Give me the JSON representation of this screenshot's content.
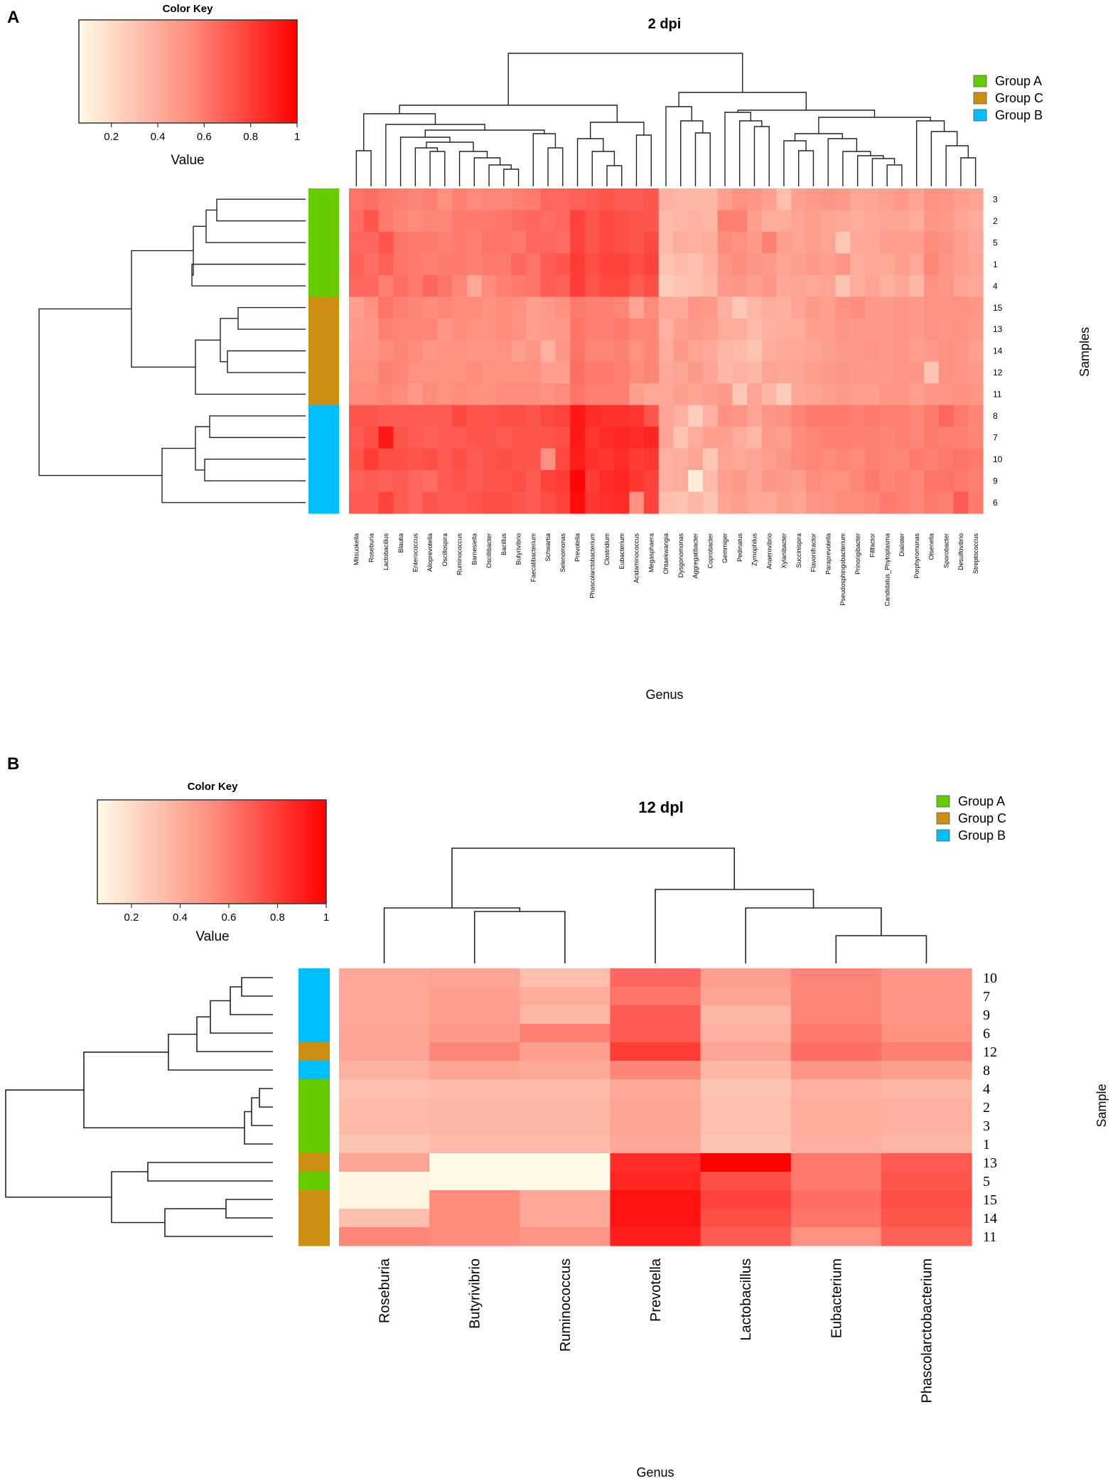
{
  "panel_labels": {
    "a": "A",
    "b": "B"
  },
  "colors": {
    "group_a": "#66cc00",
    "group_c": "#cc8f12",
    "group_b": "#00bfff",
    "low": "#fffbe6",
    "mid": "#fe8f80",
    "high": "#ff0000"
  },
  "legend": {
    "items": [
      {
        "label": "Group A",
        "group": "A"
      },
      {
        "label": "Group C",
        "group": "C"
      },
      {
        "label": "Group B",
        "group": "B"
      }
    ]
  },
  "chart_data": [
    {
      "type": "heatmap",
      "title": "2 dpi",
      "xlabel": "Genus",
      "ylabel": "Samples",
      "color_key": {
        "title": "Color Key",
        "label": "Value",
        "ticks": [
          "0.2",
          "0.4",
          "0.6",
          "0.8",
          "1"
        ],
        "range": [
          0.06,
          1
        ]
      },
      "columns": [
        "Mitsuokella",
        "Roseburia",
        "Lactobacillus",
        "Blautia",
        "Enterococcus",
        "Alloprevotella",
        "Oscillospira",
        "Ruminococcus",
        "Barnesiella",
        "Oscillibacter",
        "Bacillus",
        "Butyrivibrio",
        "Faecalibacterium",
        "Schwartia",
        "Selenomonas",
        "Prevotella",
        "Phascolarctobacterium",
        "Clostridium",
        "Eubacterium",
        "Acidaminococcus",
        "Megasphaera",
        "Ohtaekwangia",
        "Dysgonomonas",
        "Aggregatibacter",
        "Coprobacter",
        "Gemmiger",
        "Pedinatus",
        "Zymophilus",
        "Anaerovibrio",
        "Xylanibacter",
        "Succinispira",
        "Flavonifractor",
        "Paraprevotella",
        "Pseudosphingobacterium",
        "Prinorigibacter",
        "Fillfactor",
        "Candidatus_Phytoplasma",
        "Dialister",
        "Porphyromonas",
        "Olsenella",
        "Sporobacter",
        "Desulfovibrio",
        "Streptococcus"
      ],
      "rows": [
        {
          "label": "3",
          "group": "A"
        },
        {
          "label": "2",
          "group": "A"
        },
        {
          "label": "5",
          "group": "A"
        },
        {
          "label": "1",
          "group": "A"
        },
        {
          "label": "4",
          "group": "A"
        },
        {
          "label": "15",
          "group": "C"
        },
        {
          "label": "13",
          "group": "C"
        },
        {
          "label": "14",
          "group": "C"
        },
        {
          "label": "12",
          "group": "C"
        },
        {
          "label": "11",
          "group": "C"
        },
        {
          "label": "8",
          "group": "B"
        },
        {
          "label": "7",
          "group": "B"
        },
        {
          "label": "10",
          "group": "B"
        },
        {
          "label": "9",
          "group": "B"
        },
        {
          "label": "6",
          "group": "B"
        }
      ],
      "values": [
        [
          0.62,
          0.64,
          0.6,
          0.58,
          0.56,
          0.58,
          0.52,
          0.58,
          0.54,
          0.56,
          0.56,
          0.58,
          0.6,
          0.66,
          0.66,
          0.68,
          0.7,
          0.72,
          0.7,
          0.7,
          0.72,
          0.38,
          0.36,
          0.36,
          0.36,
          0.46,
          0.52,
          0.5,
          0.46,
          0.32,
          0.46,
          0.48,
          0.5,
          0.48,
          0.42,
          0.44,
          0.46,
          0.48,
          0.44,
          0.52,
          0.5,
          0.46,
          0.44
        ],
        [
          0.64,
          0.72,
          0.6,
          0.56,
          0.54,
          0.56,
          0.56,
          0.6,
          0.6,
          0.6,
          0.62,
          0.64,
          0.66,
          0.64,
          0.66,
          0.78,
          0.72,
          0.76,
          0.74,
          0.72,
          0.72,
          0.34,
          0.36,
          0.38,
          0.36,
          0.58,
          0.58,
          0.46,
          0.4,
          0.4,
          0.44,
          0.46,
          0.44,
          0.42,
          0.4,
          0.42,
          0.44,
          0.44,
          0.4,
          0.5,
          0.48,
          0.44,
          0.4
        ],
        [
          0.66,
          0.66,
          0.72,
          0.62,
          0.6,
          0.6,
          0.58,
          0.6,
          0.58,
          0.62,
          0.62,
          0.6,
          0.66,
          0.66,
          0.64,
          0.78,
          0.72,
          0.76,
          0.74,
          0.72,
          0.76,
          0.34,
          0.4,
          0.38,
          0.4,
          0.54,
          0.52,
          0.48,
          0.58,
          0.46,
          0.44,
          0.46,
          0.44,
          0.28,
          0.42,
          0.42,
          0.46,
          0.46,
          0.46,
          0.54,
          0.52,
          0.46,
          0.42
        ],
        [
          0.68,
          0.64,
          0.68,
          0.62,
          0.6,
          0.58,
          0.6,
          0.6,
          0.58,
          0.6,
          0.6,
          0.66,
          0.62,
          0.7,
          0.72,
          0.8,
          0.74,
          0.78,
          0.78,
          0.74,
          0.78,
          0.3,
          0.34,
          0.32,
          0.38,
          0.5,
          0.54,
          0.5,
          0.48,
          0.44,
          0.46,
          0.48,
          0.46,
          0.5,
          0.4,
          0.42,
          0.42,
          0.46,
          0.42,
          0.56,
          0.5,
          0.46,
          0.44
        ],
        [
          0.66,
          0.66,
          0.58,
          0.64,
          0.6,
          0.66,
          0.62,
          0.56,
          0.42,
          0.54,
          0.58,
          0.6,
          0.62,
          0.7,
          0.68,
          0.8,
          0.72,
          0.76,
          0.76,
          0.7,
          0.74,
          0.26,
          0.3,
          0.32,
          0.36,
          0.48,
          0.5,
          0.46,
          0.5,
          0.42,
          0.44,
          0.42,
          0.44,
          0.3,
          0.4,
          0.44,
          0.38,
          0.42,
          0.36,
          0.52,
          0.5,
          0.44,
          0.42
        ],
        [
          0.46,
          0.52,
          0.62,
          0.58,
          0.56,
          0.54,
          0.56,
          0.54,
          0.54,
          0.52,
          0.54,
          0.52,
          0.46,
          0.48,
          0.52,
          0.6,
          0.58,
          0.58,
          0.56,
          0.44,
          0.54,
          0.42,
          0.42,
          0.5,
          0.48,
          0.38,
          0.28,
          0.36,
          0.4,
          0.38,
          0.44,
          0.48,
          0.46,
          0.52,
          0.54,
          0.48,
          0.48,
          0.5,
          0.48,
          0.52,
          0.52,
          0.52,
          0.5
        ],
        [
          0.48,
          0.5,
          0.58,
          0.56,
          0.56,
          0.56,
          0.5,
          0.54,
          0.52,
          0.52,
          0.54,
          0.52,
          0.46,
          0.48,
          0.48,
          0.62,
          0.58,
          0.58,
          0.6,
          0.56,
          0.56,
          0.38,
          0.46,
          0.48,
          0.46,
          0.4,
          0.4,
          0.34,
          0.38,
          0.4,
          0.4,
          0.46,
          0.46,
          0.5,
          0.48,
          0.48,
          0.48,
          0.5,
          0.48,
          0.52,
          0.5,
          0.52,
          0.48
        ],
        [
          0.5,
          0.5,
          0.54,
          0.56,
          0.54,
          0.5,
          0.52,
          0.52,
          0.5,
          0.5,
          0.52,
          0.46,
          0.5,
          0.38,
          0.5,
          0.62,
          0.56,
          0.56,
          0.58,
          0.52,
          0.56,
          0.4,
          0.48,
          0.44,
          0.42,
          0.36,
          0.34,
          0.3,
          0.4,
          0.42,
          0.42,
          0.44,
          0.46,
          0.48,
          0.48,
          0.5,
          0.48,
          0.5,
          0.46,
          0.48,
          0.52,
          0.5,
          0.46
        ],
        [
          0.52,
          0.52,
          0.58,
          0.56,
          0.52,
          0.52,
          0.52,
          0.52,
          0.54,
          0.52,
          0.52,
          0.52,
          0.52,
          0.46,
          0.46,
          0.64,
          0.6,
          0.6,
          0.58,
          0.54,
          0.56,
          0.42,
          0.44,
          0.48,
          0.44,
          0.36,
          0.38,
          0.36,
          0.44,
          0.42,
          0.44,
          0.46,
          0.48,
          0.5,
          0.48,
          0.48,
          0.48,
          0.5,
          0.5,
          0.3,
          0.52,
          0.5,
          0.48
        ],
        [
          0.54,
          0.54,
          0.56,
          0.54,
          0.48,
          0.54,
          0.52,
          0.54,
          0.52,
          0.52,
          0.54,
          0.54,
          0.54,
          0.52,
          0.54,
          0.62,
          0.58,
          0.58,
          0.58,
          0.46,
          0.42,
          0.42,
          0.46,
          0.44,
          0.46,
          0.48,
          0.28,
          0.44,
          0.36,
          0.26,
          0.42,
          0.44,
          0.46,
          0.48,
          0.46,
          0.46,
          0.5,
          0.5,
          0.46,
          0.5,
          0.5,
          0.52,
          0.5
        ],
        [
          0.72,
          0.72,
          0.7,
          0.7,
          0.7,
          0.7,
          0.7,
          0.76,
          0.72,
          0.72,
          0.74,
          0.74,
          0.72,
          0.76,
          0.78,
          0.92,
          0.86,
          0.84,
          0.84,
          0.82,
          0.72,
          0.44,
          0.38,
          0.26,
          0.38,
          0.52,
          0.5,
          0.44,
          0.5,
          0.52,
          0.56,
          0.6,
          0.6,
          0.6,
          0.58,
          0.6,
          0.58,
          0.58,
          0.56,
          0.6,
          0.66,
          0.6,
          0.56
        ],
        [
          0.7,
          0.74,
          0.92,
          0.72,
          0.7,
          0.68,
          0.7,
          0.7,
          0.72,
          0.72,
          0.7,
          0.72,
          0.72,
          0.72,
          0.74,
          0.92,
          0.82,
          0.86,
          0.88,
          0.86,
          0.88,
          0.44,
          0.3,
          0.4,
          0.46,
          0.46,
          0.4,
          0.36,
          0.48,
          0.46,
          0.54,
          0.56,
          0.58,
          0.58,
          0.58,
          0.58,
          0.56,
          0.58,
          0.56,
          0.6,
          0.58,
          0.58,
          0.56
        ],
        [
          0.72,
          0.8,
          0.74,
          0.74,
          0.72,
          0.74,
          0.7,
          0.74,
          0.7,
          0.72,
          0.74,
          0.72,
          0.72,
          0.52,
          0.76,
          0.9,
          0.84,
          0.82,
          0.86,
          0.8,
          0.82,
          0.38,
          0.4,
          0.44,
          0.28,
          0.44,
          0.42,
          0.44,
          0.46,
          0.5,
          0.54,
          0.56,
          0.54,
          0.56,
          0.54,
          0.58,
          0.56,
          0.56,
          0.6,
          0.58,
          0.6,
          0.62,
          0.6
        ],
        [
          0.68,
          0.7,
          0.68,
          0.7,
          0.66,
          0.64,
          0.7,
          0.72,
          0.7,
          0.72,
          0.72,
          0.74,
          0.7,
          0.78,
          0.8,
          0.98,
          0.8,
          0.86,
          0.88,
          0.82,
          0.78,
          0.38,
          0.4,
          0.12,
          0.34,
          0.46,
          0.48,
          0.44,
          0.5,
          0.48,
          0.46,
          0.54,
          0.52,
          0.52,
          0.56,
          0.6,
          0.56,
          0.58,
          0.56,
          0.62,
          0.62,
          0.6,
          0.58
        ],
        [
          0.7,
          0.7,
          0.78,
          0.7,
          0.66,
          0.72,
          0.7,
          0.7,
          0.72,
          0.74,
          0.74,
          0.72,
          0.7,
          0.74,
          0.78,
          0.96,
          0.82,
          0.84,
          0.86,
          0.52,
          0.78,
          0.32,
          0.3,
          0.36,
          0.3,
          0.44,
          0.46,
          0.42,
          0.42,
          0.46,
          0.44,
          0.5,
          0.52,
          0.54,
          0.54,
          0.56,
          0.6,
          0.58,
          0.56,
          0.6,
          0.58,
          0.7,
          0.6
        ]
      ]
    },
    {
      "type": "heatmap",
      "title": "12 dpl",
      "xlabel": "Genus",
      "ylabel": "Sample",
      "color_key": {
        "title": "Color Key",
        "label": "Value",
        "ticks": [
          "0.2",
          "0.4",
          "0.6",
          "0.8",
          "1"
        ],
        "range": [
          0.06,
          1
        ]
      },
      "columns": [
        "Roseburia",
        "Butyrivibrio",
        "Ruminococcus",
        "Prevotella",
        "Lactobacillus",
        "Eubacterium",
        "Phascolarctobacterium"
      ],
      "rows": [
        {
          "label": "10",
          "group": "B"
        },
        {
          "label": "7",
          "group": "B"
        },
        {
          "label": "9",
          "group": "B"
        },
        {
          "label": "6",
          "group": "B"
        },
        {
          "label": "12",
          "group": "C"
        },
        {
          "label": "8",
          "group": "B"
        },
        {
          "label": "4",
          "group": "A"
        },
        {
          "label": "2",
          "group": "A"
        },
        {
          "label": "3",
          "group": "A"
        },
        {
          "label": "1",
          "group": "A"
        },
        {
          "label": "13",
          "group": "C"
        },
        {
          "label": "5",
          "group": "A"
        },
        {
          "label": "15",
          "group": "C"
        },
        {
          "label": "14",
          "group": "C"
        },
        {
          "label": "11",
          "group": "C"
        }
      ],
      "values": [
        [
          0.42,
          0.44,
          0.32,
          0.66,
          0.46,
          0.56,
          0.5
        ],
        [
          0.42,
          0.46,
          0.4,
          0.62,
          0.44,
          0.56,
          0.5
        ],
        [
          0.42,
          0.46,
          0.36,
          0.7,
          0.36,
          0.56,
          0.5
        ],
        [
          0.44,
          0.48,
          0.58,
          0.7,
          0.38,
          0.6,
          0.52
        ],
        [
          0.44,
          0.56,
          0.46,
          0.8,
          0.44,
          0.64,
          0.58
        ],
        [
          0.38,
          0.44,
          0.42,
          0.56,
          0.36,
          0.5,
          0.46
        ],
        [
          0.32,
          0.34,
          0.34,
          0.42,
          0.3,
          0.38,
          0.36
        ],
        [
          0.34,
          0.36,
          0.36,
          0.44,
          0.32,
          0.4,
          0.38
        ],
        [
          0.34,
          0.36,
          0.36,
          0.44,
          0.32,
          0.4,
          0.38
        ],
        [
          0.3,
          0.34,
          0.34,
          0.42,
          0.3,
          0.38,
          0.36
        ],
        [
          0.44,
          0.06,
          0.06,
          0.86,
          1.0,
          0.6,
          0.7
        ],
        [
          0.08,
          0.06,
          0.06,
          0.88,
          0.74,
          0.6,
          0.72
        ],
        [
          0.08,
          0.54,
          0.42,
          0.94,
          0.78,
          0.64,
          0.74
        ],
        [
          0.32,
          0.54,
          0.42,
          0.94,
          0.74,
          0.62,
          0.72
        ],
        [
          0.56,
          0.54,
          0.5,
          0.9,
          0.7,
          0.52,
          0.68
        ]
      ]
    }
  ]
}
